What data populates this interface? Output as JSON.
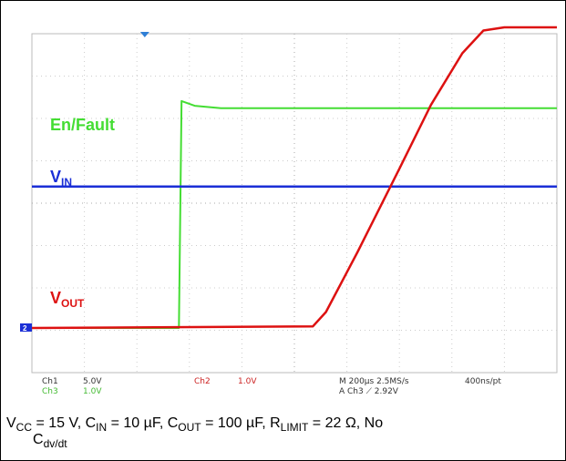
{
  "chart_data": {
    "type": "line",
    "time_axis": {
      "divisions": 10,
      "unit_label": ""
    },
    "vertical_divisions": 8,
    "trigger_marker_color": "#2f7fd6",
    "series": [
      {
        "name": "En/Fault",
        "color": "#44dd33",
        "points_div": [
          [
            0,
            0.0
          ],
          [
            2.8,
            0.0
          ],
          [
            2.85,
            5.7
          ],
          [
            3.1,
            5.58
          ],
          [
            3.6,
            5.52
          ],
          [
            10,
            5.52
          ]
        ]
      },
      {
        "name": "V_IN",
        "color": "#1b2fd6",
        "points_div": [
          [
            0,
            3.55
          ],
          [
            10,
            3.55
          ]
        ]
      },
      {
        "name": "V_OUT",
        "color": "#dd1111",
        "points_div": [
          [
            0,
            0.0
          ],
          [
            5.35,
            0.04
          ],
          [
            5.6,
            0.4
          ],
          [
            6.2,
            1.9
          ],
          [
            7.0,
            4.0
          ],
          [
            7.6,
            5.6
          ],
          [
            8.2,
            6.9
          ],
          [
            8.6,
            7.47
          ],
          [
            9.0,
            7.55
          ],
          [
            10,
            7.55
          ]
        ]
      }
    ],
    "labels": {
      "en_fault": "En/Fault",
      "vin_main": "V",
      "vin_sub": "IN",
      "vout_main": "V",
      "vout_sub": "OUT",
      "ground_marker": "2"
    },
    "readout": {
      "ch1": "Ch1",
      "ch1_scale": "5.0V",
      "ch2": "Ch2",
      "ch2_scale": "1.0V",
      "ch3": "Ch3",
      "ch3_scale": "1.0V",
      "timebase": "M 200µs 2.5MS/s",
      "record": "400ns/pt",
      "trigger": "A  Ch3  ⟋ 2.92V"
    }
  },
  "caption": {
    "vcc_main": "V",
    "vcc_sub": "CC",
    "vcc_val": " = 15 V, C",
    "cin_sub": "IN",
    "cin_val": " = 10 µF, C",
    "cout_sub": "OUT",
    "cout_val": " = 100 µF, R",
    "rlimit_sub": "LIMIT",
    "rlimit_val": " = 22 Ω, No",
    "cdvdt_main": "C",
    "cdvdt_sub": "dv/dt"
  }
}
